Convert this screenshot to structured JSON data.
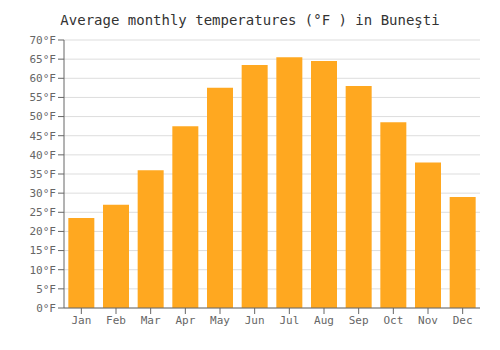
{
  "chart_data": {
    "type": "bar",
    "title": "Average monthly temperatures (°F ) in Buneşti",
    "categories": [
      "Jan",
      "Feb",
      "Mar",
      "Apr",
      "May",
      "Jun",
      "Jul",
      "Aug",
      "Sep",
      "Oct",
      "Nov",
      "Dec"
    ],
    "values": [
      23.5,
      27.0,
      36.0,
      47.5,
      57.5,
      63.5,
      65.5,
      64.5,
      58.0,
      48.5,
      38.0,
      29.0
    ],
    "color": "#FFA820",
    "ylim": [
      0,
      70
    ],
    "yticks": [
      {
        "value": 0,
        "label": "0°F"
      },
      {
        "value": 5,
        "label": "5°F"
      },
      {
        "value": 10,
        "label": "10°F"
      },
      {
        "value": 15,
        "label": "15°F"
      },
      {
        "value": 20,
        "label": "20°F"
      },
      {
        "value": 25,
        "label": "25°F"
      },
      {
        "value": 30,
        "label": "30°F"
      },
      {
        "value": 35,
        "label": "35°F"
      },
      {
        "value": 40,
        "label": "40°F"
      },
      {
        "value": 45,
        "label": "45°F"
      },
      {
        "value": 50,
        "label": "50°F"
      },
      {
        "value": 55,
        "label": "55°F"
      },
      {
        "value": 60,
        "label": "60°F"
      },
      {
        "value": 65,
        "label": "65°F"
      },
      {
        "value": 70,
        "label": "70°F"
      }
    ],
    "grid": true
  }
}
